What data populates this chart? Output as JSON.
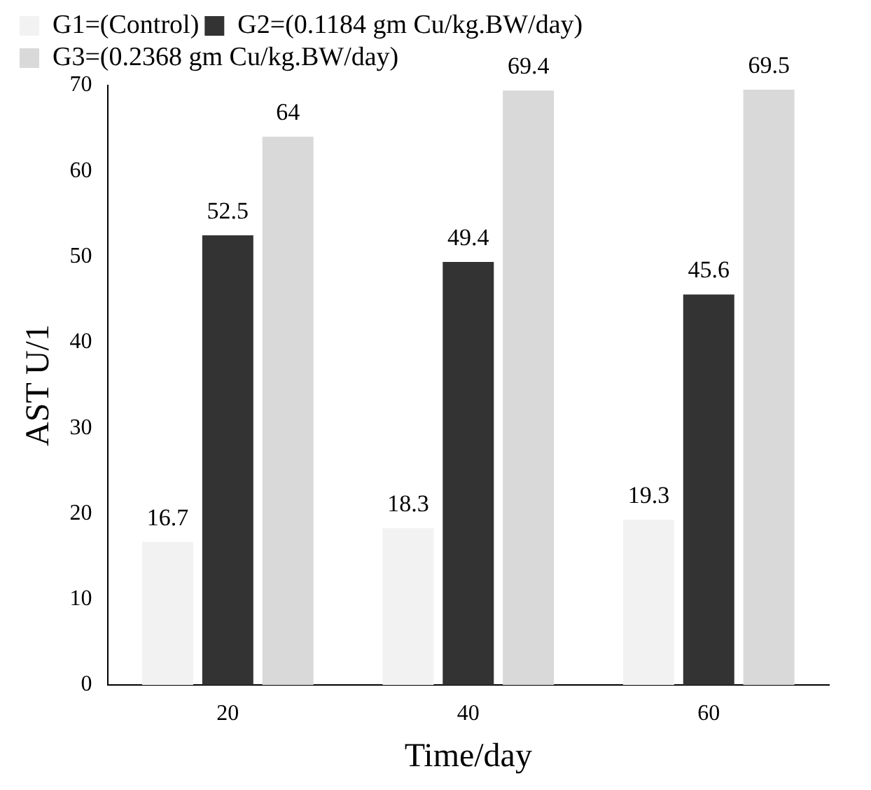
{
  "chart_data": {
    "type": "bar",
    "xlabel": "Time/day",
    "ylabel": "AST U/1",
    "categories": [
      "20",
      "40",
      "60"
    ],
    "series": [
      {
        "name": "G1=(Control)",
        "color": "#f2f2f2",
        "values": [
          16.7,
          18.3,
          19.3
        ]
      },
      {
        "name": "G2=(0.1184 gm Cu/kg.BW/day)",
        "color": "#333333",
        "values": [
          52.5,
          49.4,
          45.6
        ]
      },
      {
        "name": "G3=(0.2368 gm Cu/kg.BW/day)",
        "color": "#d9d9d9",
        "values": [
          64,
          69.4,
          69.5
        ]
      }
    ],
    "ylim": [
      0,
      70
    ],
    "yticks": [
      0,
      10,
      20,
      30,
      40,
      50,
      60,
      70
    ],
    "grid": false,
    "legend": "top",
    "data_labels": true
  }
}
